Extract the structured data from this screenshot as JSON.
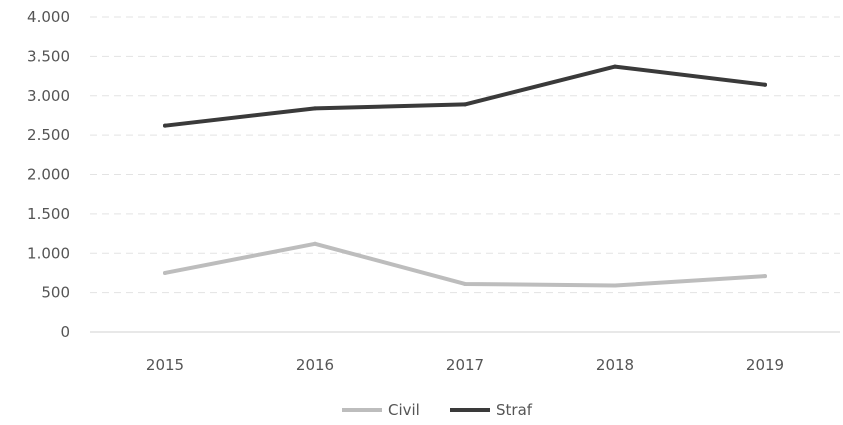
{
  "chart_data": {
    "type": "line",
    "title": "",
    "xlabel": "",
    "ylabel": "",
    "categories": [
      "2015",
      "2016",
      "2017",
      "2018",
      "2019"
    ],
    "ylim": [
      0,
      4000
    ],
    "yticks": [
      0,
      500,
      1000,
      1500,
      2000,
      2500,
      3000,
      3500,
      4000
    ],
    "ytick_labels": [
      "0",
      "500",
      "1.000",
      "1.500",
      "2.000",
      "2.500",
      "3.000",
      "3.500",
      "4.000"
    ],
    "grid": true,
    "legend_position": "bottom",
    "series": [
      {
        "name": "Civil",
        "color": "#bdbdbd",
        "values": [
          750,
          1120,
          610,
          590,
          710
        ]
      },
      {
        "name": "Straf",
        "color": "#3a3a3a",
        "values": [
          2620,
          2840,
          2890,
          3370,
          3140
        ]
      }
    ]
  }
}
